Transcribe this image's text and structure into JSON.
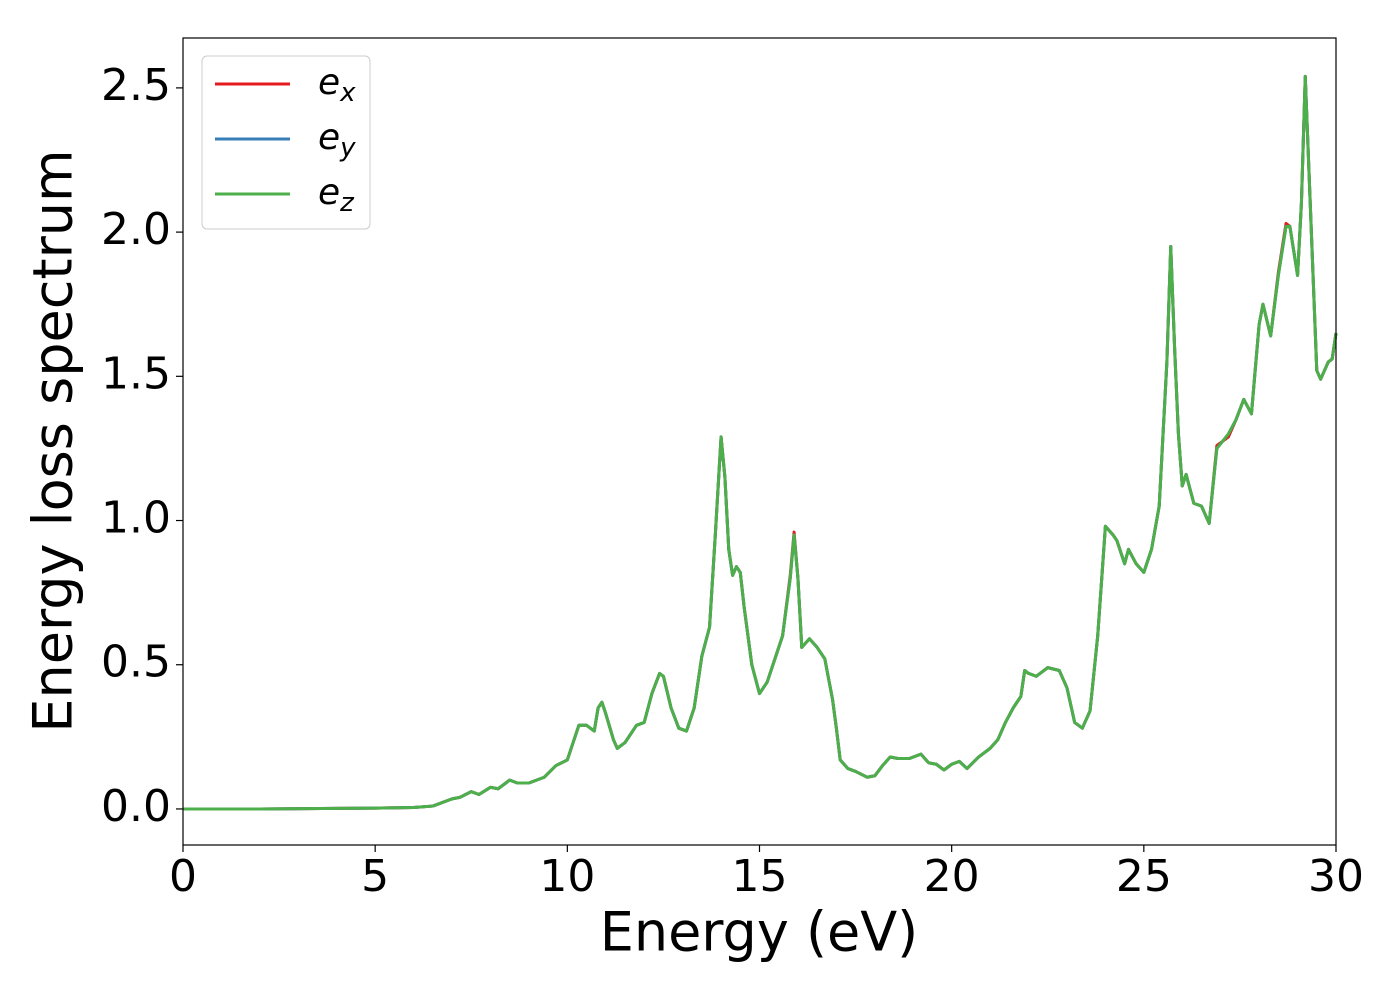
{
  "chart_data": {
    "type": "line",
    "xlabel": "Energy (eV)",
    "ylabel": "Energy loss spectrum",
    "x": [
      0,
      2,
      4,
      5,
      6,
      6.5,
      7,
      7.2,
      7.5,
      7.7,
      8,
      8.2,
      8.5,
      8.7,
      9,
      9.4,
      9.7,
      10,
      10.2,
      10.3,
      10.5,
      10.7,
      10.8,
      10.9,
      11,
      11.2,
      11.3,
      11.5,
      11.8,
      12,
      12.2,
      12.4,
      12.5,
      12.7,
      12.9,
      13.1,
      13.3,
      13.5,
      13.7,
      13.85,
      14,
      14.1,
      14.2,
      14.3,
      14.4,
      14.5,
      14.6,
      14.8,
      15,
      15.2,
      15.4,
      15.6,
      15.8,
      15.9,
      16,
      16.1,
      16.3,
      16.5,
      16.7,
      16.9,
      17,
      17.1,
      17.3,
      17.5,
      17.8,
      18,
      18.2,
      18.4,
      18.6,
      18.9,
      19.2,
      19.4,
      19.6,
      19.8,
      20,
      20.2,
      20.4,
      20.7,
      21,
      21.2,
      21.4,
      21.6,
      21.8,
      21.9,
      22,
      22.2,
      22.3,
      22.5,
      22.8,
      23,
      23.2,
      23.4,
      23.6,
      23.8,
      24,
      24.2,
      24.3,
      24.5,
      24.6,
      24.8,
      25,
      25.2,
      25.4,
      25.6,
      25.7,
      25.8,
      25.9,
      26,
      26.1,
      26.3,
      26.5,
      26.7,
      26.9,
      27.2,
      27.4,
      27.6,
      27.8,
      28,
      28.1,
      28.3,
      28.5,
      28.7,
      28.8,
      29,
      29.1,
      29.2,
      29.3,
      29.5,
      29.6,
      29.8,
      29.9,
      30
    ],
    "series": [
      {
        "name": "ex",
        "color": "#e41a1c",
        "values": [
          0,
          0,
          0.002,
          0.003,
          0.005,
          0.01,
          0.035,
          0.04,
          0.06,
          0.05,
          0.075,
          0.07,
          0.1,
          0.09,
          0.09,
          0.11,
          0.15,
          0.17,
          0.25,
          0.29,
          0.29,
          0.27,
          0.35,
          0.37,
          0.33,
          0.24,
          0.21,
          0.23,
          0.29,
          0.3,
          0.4,
          0.47,
          0.46,
          0.35,
          0.28,
          0.27,
          0.35,
          0.53,
          0.63,
          0.95,
          1.29,
          1.15,
          0.9,
          0.81,
          0.84,
          0.82,
          0.7,
          0.5,
          0.4,
          0.44,
          0.52,
          0.6,
          0.81,
          0.96,
          0.8,
          0.56,
          0.59,
          0.56,
          0.52,
          0.38,
          0.28,
          0.17,
          0.14,
          0.13,
          0.11,
          0.115,
          0.15,
          0.18,
          0.175,
          0.175,
          0.19,
          0.16,
          0.155,
          0.135,
          0.155,
          0.165,
          0.14,
          0.18,
          0.21,
          0.24,
          0.3,
          0.35,
          0.39,
          0.48,
          0.47,
          0.46,
          0.47,
          0.49,
          0.48,
          0.42,
          0.3,
          0.28,
          0.34,
          0.6,
          0.98,
          0.95,
          0.93,
          0.85,
          0.9,
          0.85,
          0.82,
          0.9,
          1.05,
          1.55,
          1.95,
          1.6,
          1.3,
          1.12,
          1.16,
          1.06,
          1.05,
          0.99,
          1.26,
          1.29,
          1.35,
          1.42,
          1.37,
          1.68,
          1.75,
          1.64,
          1.86,
          2.03,
          2.02,
          1.85,
          2.1,
          2.54,
          2.2,
          1.52,
          1.49,
          1.55,
          1.56,
          1.65
        ]
      },
      {
        "name": "ey",
        "color": "#377eb8",
        "values": [
          0,
          0,
          0.002,
          0.003,
          0.005,
          0.01,
          0.035,
          0.04,
          0.06,
          0.05,
          0.075,
          0.07,
          0.1,
          0.09,
          0.09,
          0.11,
          0.15,
          0.17,
          0.25,
          0.29,
          0.29,
          0.27,
          0.35,
          0.37,
          0.33,
          0.24,
          0.21,
          0.23,
          0.29,
          0.3,
          0.4,
          0.47,
          0.46,
          0.35,
          0.28,
          0.27,
          0.35,
          0.53,
          0.63,
          0.95,
          1.29,
          1.15,
          0.9,
          0.81,
          0.84,
          0.82,
          0.7,
          0.5,
          0.4,
          0.44,
          0.52,
          0.6,
          0.8,
          0.95,
          0.8,
          0.56,
          0.59,
          0.56,
          0.52,
          0.38,
          0.28,
          0.17,
          0.14,
          0.13,
          0.11,
          0.115,
          0.15,
          0.18,
          0.175,
          0.175,
          0.19,
          0.16,
          0.155,
          0.135,
          0.155,
          0.165,
          0.14,
          0.18,
          0.21,
          0.24,
          0.3,
          0.35,
          0.39,
          0.48,
          0.47,
          0.46,
          0.47,
          0.49,
          0.48,
          0.42,
          0.3,
          0.28,
          0.34,
          0.6,
          0.98,
          0.95,
          0.93,
          0.85,
          0.9,
          0.85,
          0.82,
          0.9,
          1.05,
          1.55,
          1.95,
          1.6,
          1.3,
          1.12,
          1.16,
          1.06,
          1.05,
          0.99,
          1.25,
          1.3,
          1.35,
          1.42,
          1.37,
          1.68,
          1.75,
          1.64,
          1.85,
          2.02,
          2.02,
          1.85,
          2.1,
          2.54,
          2.2,
          1.52,
          1.49,
          1.55,
          1.56,
          1.65
        ]
      },
      {
        "name": "ez",
        "color": "#4daf4a",
        "values": [
          0,
          0,
          0.002,
          0.003,
          0.005,
          0.01,
          0.035,
          0.04,
          0.06,
          0.05,
          0.075,
          0.07,
          0.1,
          0.09,
          0.09,
          0.11,
          0.15,
          0.17,
          0.25,
          0.29,
          0.29,
          0.27,
          0.35,
          0.37,
          0.33,
          0.24,
          0.21,
          0.23,
          0.29,
          0.3,
          0.4,
          0.47,
          0.46,
          0.35,
          0.28,
          0.27,
          0.35,
          0.53,
          0.63,
          0.95,
          1.29,
          1.15,
          0.9,
          0.81,
          0.84,
          0.82,
          0.7,
          0.5,
          0.4,
          0.44,
          0.52,
          0.6,
          0.8,
          0.95,
          0.8,
          0.56,
          0.59,
          0.56,
          0.52,
          0.38,
          0.28,
          0.17,
          0.14,
          0.13,
          0.11,
          0.115,
          0.15,
          0.18,
          0.175,
          0.175,
          0.19,
          0.16,
          0.155,
          0.135,
          0.155,
          0.165,
          0.14,
          0.18,
          0.21,
          0.24,
          0.3,
          0.35,
          0.39,
          0.48,
          0.47,
          0.46,
          0.47,
          0.49,
          0.48,
          0.42,
          0.3,
          0.28,
          0.34,
          0.6,
          0.98,
          0.95,
          0.93,
          0.85,
          0.9,
          0.85,
          0.82,
          0.9,
          1.05,
          1.55,
          1.95,
          1.6,
          1.3,
          1.12,
          1.16,
          1.06,
          1.05,
          0.99,
          1.25,
          1.3,
          1.35,
          1.42,
          1.37,
          1.68,
          1.75,
          1.64,
          1.85,
          2.02,
          2.02,
          1.85,
          2.1,
          2.54,
          2.2,
          1.52,
          1.49,
          1.55,
          1.56,
          1.65
        ]
      }
    ],
    "xlim": [
      0,
      30
    ],
    "xticks": [
      0,
      5,
      10,
      15,
      20,
      25,
      30
    ],
    "ylim": [
      -0.125,
      2.673
    ],
    "yticks": [
      {
        "value": 0,
        "label": "0.0"
      },
      0.5,
      {
        "value": 1,
        "label": "1.0"
      },
      1.5,
      {
        "value": 2,
        "label": "2.0"
      },
      2.5
    ],
    "grid": false,
    "legend": "upper left"
  }
}
